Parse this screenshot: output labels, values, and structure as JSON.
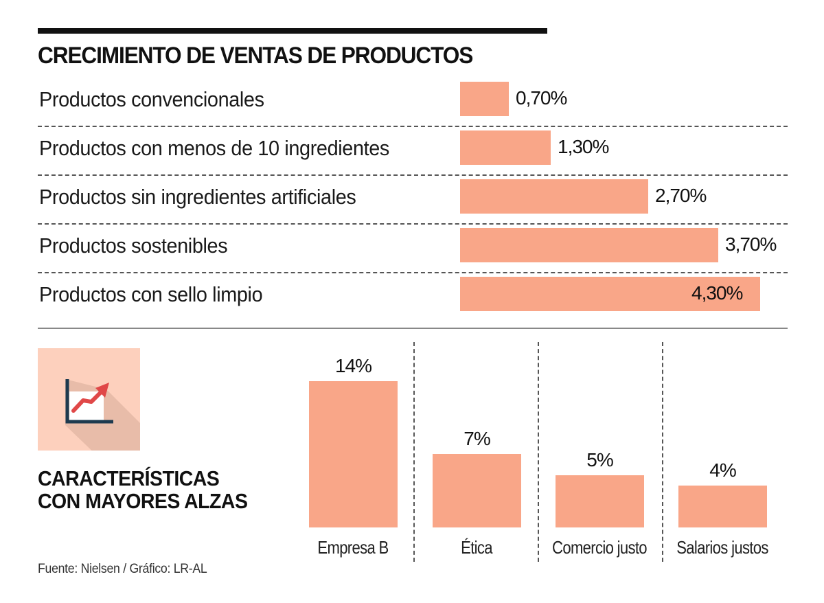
{
  "title": "CRECIMIENTO DE VENTAS DE PRODUCTOS",
  "subtitle_lines": [
    "CARACTERÍSTICAS",
    "CON MAYORES ALZAS"
  ],
  "source": "Fuente: Nielsen / Gráfico: LR-AL",
  "icon": "rising-chart-icon",
  "colors": {
    "bar": "#f9a688",
    "icon_bg": "#fdd0bd",
    "text": "#111111",
    "rule": "#111111"
  },
  "chart_data": [
    {
      "type": "bar",
      "orientation": "horizontal",
      "title": "CRECIMIENTO DE VENTAS DE PRODUCTOS",
      "categories": [
        "Productos convencionales",
        "Productos con menos de 10 ingredientes",
        "Productos sin ingredientes artificiales",
        "Productos sostenibles",
        "Productos con sello limpio"
      ],
      "values": [
        0.7,
        1.3,
        2.7,
        3.7,
        4.3
      ],
      "labels": [
        "0,70%",
        "1,30%",
        "2,70%",
        "3,70%",
        "4,30%"
      ],
      "unit": "%",
      "xlabel": "",
      "ylabel": "",
      "xlim": [
        0,
        4.3
      ],
      "grid": false
    },
    {
      "type": "bar",
      "orientation": "vertical",
      "title": "CARACTERÍSTICAS CON MAYORES ALZAS",
      "categories": [
        "Empresa B",
        "Ética",
        "Comercio justo",
        "Salarios justos"
      ],
      "values": [
        14,
        7,
        5,
        4
      ],
      "labels": [
        "14%",
        "7%",
        "5%",
        "4%"
      ],
      "unit": "%",
      "xlabel": "",
      "ylabel": "",
      "ylim": [
        0,
        14
      ],
      "grid": false
    }
  ]
}
